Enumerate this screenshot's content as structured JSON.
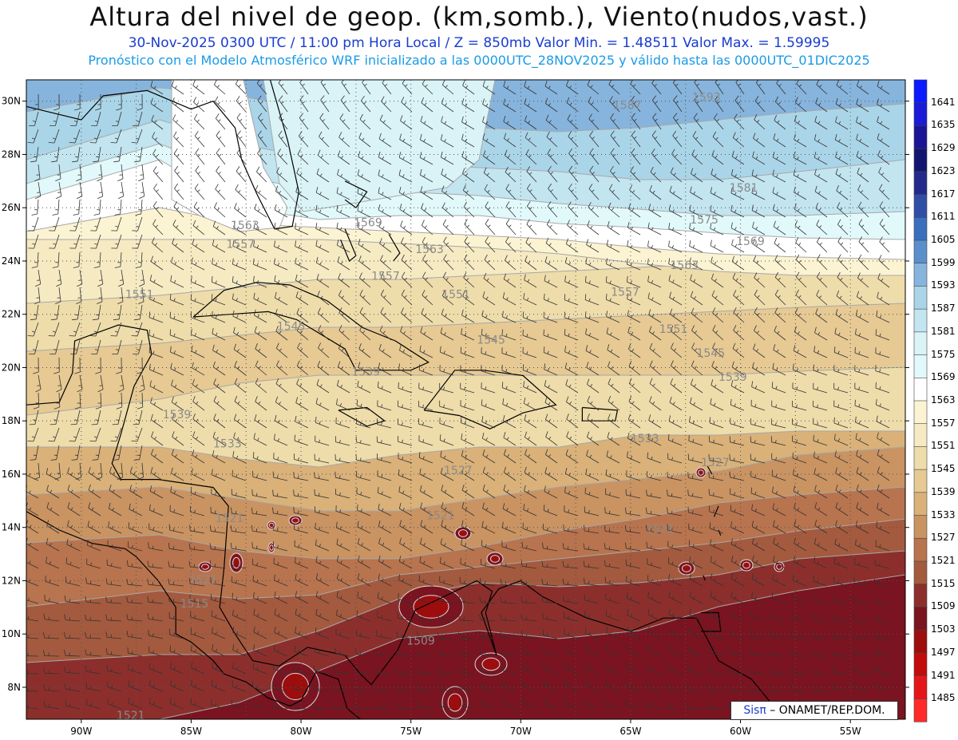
{
  "header": {
    "title": "Altura del nivel de geop. (km,somb.), Viento(nudos,vast.)",
    "subtitle": "30-Nov-2025  0300 UTC / 11:00 pm Hora Local / Z = 850mb    Valor Min. = 1.48511   Valor Max. = 1.59995",
    "info": "Pronóstico con el Modelo Atmosférico WRF inicializado a las 0000UTC_28NOV2025 y válido hasta las  0000UTC_01DIC2025"
  },
  "map": {
    "lon_labels": [
      "90W",
      "85W",
      "80W",
      "75W",
      "70W",
      "65W",
      "60W",
      "55W"
    ],
    "lat_labels": [
      "30N",
      "28N",
      "26N",
      "24N",
      "22N",
      "20N",
      "18N",
      "16N",
      "14N",
      "12N",
      "10N",
      "8N"
    ],
    "contour_labels": [
      {
        "text": "1587",
        "lon": -65.8,
        "lat": 29.7
      },
      {
        "text": "1593",
        "lon": -62.2,
        "lat": 30.0
      },
      {
        "text": "1581",
        "lon": -60.5,
        "lat": 26.6
      },
      {
        "text": "1575",
        "lon": -62.3,
        "lat": 25.4
      },
      {
        "text": "1569",
        "lon": -60.2,
        "lat": 24.6
      },
      {
        "text": "1563",
        "lon": -83.2,
        "lat": 25.2
      },
      {
        "text": "1557",
        "lon": -83.4,
        "lat": 24.5
      },
      {
        "text": "1569",
        "lon": -77.6,
        "lat": 25.3
      },
      {
        "text": "1563",
        "lon": -74.8,
        "lat": 24.3
      },
      {
        "text": "1563",
        "lon": -63.2,
        "lat": 23.7
      },
      {
        "text": "1557",
        "lon": -76.8,
        "lat": 23.3
      },
      {
        "text": "1557",
        "lon": -65.9,
        "lat": 22.7
      },
      {
        "text": "1551",
        "lon": -88.0,
        "lat": 22.6
      },
      {
        "text": "1551",
        "lon": -73.6,
        "lat": 22.6
      },
      {
        "text": "1551",
        "lon": -63.7,
        "lat": 21.3
      },
      {
        "text": "1545",
        "lon": -81.1,
        "lat": 21.4
      },
      {
        "text": "1545",
        "lon": -72.0,
        "lat": 20.9
      },
      {
        "text": "1545",
        "lon": -62.0,
        "lat": 20.4
      },
      {
        "text": "1539",
        "lon": -77.7,
        "lat": 19.7
      },
      {
        "text": "1539",
        "lon": -61.0,
        "lat": 19.5
      },
      {
        "text": "1539",
        "lon": -86.3,
        "lat": 18.1
      },
      {
        "text": "1533",
        "lon": -65.0,
        "lat": 17.2
      },
      {
        "text": "1533",
        "lon": -84.0,
        "lat": 17.0
      },
      {
        "text": "1527",
        "lon": -73.5,
        "lat": 16.0
      },
      {
        "text": "1527",
        "lon": -61.8,
        "lat": 16.3
      },
      {
        "text": "1521",
        "lon": -74.3,
        "lat": 14.3
      },
      {
        "text": "1521",
        "lon": -64.3,
        "lat": 13.8
      },
      {
        "text": "1521",
        "lon": -83.9,
        "lat": 14.2
      },
      {
        "text": "1521",
        "lon": -85.1,
        "lat": 11.9
      },
      {
        "text": "1515",
        "lon": -85.5,
        "lat": 11.0
      },
      {
        "text": "1509",
        "lon": -75.2,
        "lat": 9.6
      },
      {
        "text": "1521",
        "lon": -88.4,
        "lat": 6.8
      }
    ]
  },
  "colorbar": {
    "levels": [
      "1641",
      "1635",
      "1629",
      "1623",
      "1617",
      "1611",
      "1605",
      "1599",
      "1593",
      "1587",
      "1581",
      "1575",
      "1569",
      "1563",
      "1557",
      "1551",
      "1545",
      "1539",
      "1533",
      "1527",
      "1521",
      "1515",
      "1509",
      "1503",
      "1497",
      "1491",
      "1485"
    ],
    "colors": [
      "#0a1bff",
      "#1a1ad8",
      "#1c1496",
      "#121570",
      "#232a8c",
      "#2f4fa7",
      "#3a6fbe",
      "#5a8fcb",
      "#86b4dc",
      "#aad5e8",
      "#c2e5f0",
      "#d9f3f7",
      "#e2f9fb",
      "#ffffff",
      "#fbf3d2",
      "#f5eac2",
      "#eedcaa",
      "#e6c993",
      "#d9b179",
      "#c99362",
      "#b8744e",
      "#a45a3e",
      "#8c2f2c",
      "#7a1420",
      "#9d0d0d",
      "#c20c0c",
      "#e5161a",
      "#ff2a2a"
    ]
  },
  "credit": {
    "brand": "Sisπ",
    "text": " – ONAMET/REP.DOM."
  }
}
